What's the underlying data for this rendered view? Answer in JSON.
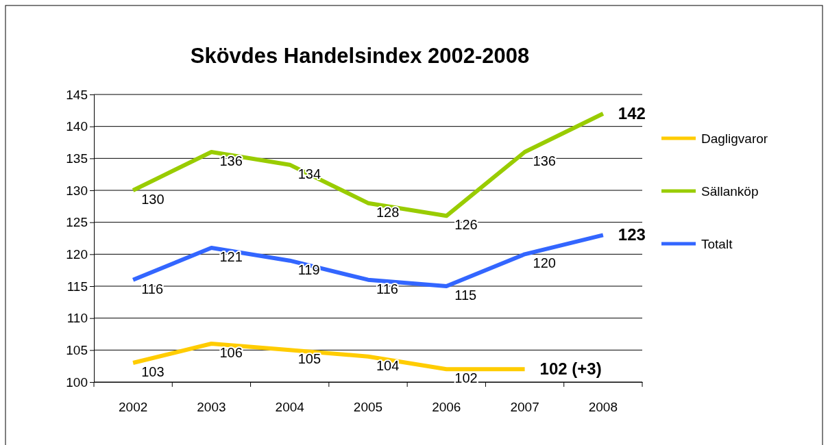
{
  "chart_data": {
    "type": "line",
    "title": "Skövdes Handelsindex 2002-2008",
    "categories": [
      "2002",
      "2003",
      "2004",
      "2005",
      "2006",
      "2007",
      "2008"
    ],
    "series": [
      {
        "name": "Dagligvaror",
        "color": "#ffcc00",
        "values": [
          103,
          106,
          105,
          104,
          102,
          102,
          null
        ],
        "value_labels": [
          "103",
          "106",
          "105",
          "104",
          "102",
          "102 (+3)",
          null
        ]
      },
      {
        "name": "Sällanköp",
        "color": "#99cc00",
        "values": [
          130,
          136,
          134,
          128,
          126,
          136,
          142
        ],
        "value_labels": [
          "130",
          "136",
          "134",
          "128",
          "126",
          "136",
          "142"
        ]
      },
      {
        "name": "Totalt",
        "color": "#3366ff",
        "values": [
          116,
          121,
          119,
          116,
          115,
          120,
          123
        ],
        "value_labels": [
          "116",
          "121",
          "119",
          "116",
          "115",
          "120",
          "123"
        ]
      }
    ],
    "ylim": [
      100,
      145
    ],
    "yticks": [
      100,
      105,
      110,
      115,
      120,
      125,
      130,
      135,
      140,
      145
    ],
    "grid": "y",
    "legend": "right",
    "marker": "none",
    "line_style": "solid"
  }
}
